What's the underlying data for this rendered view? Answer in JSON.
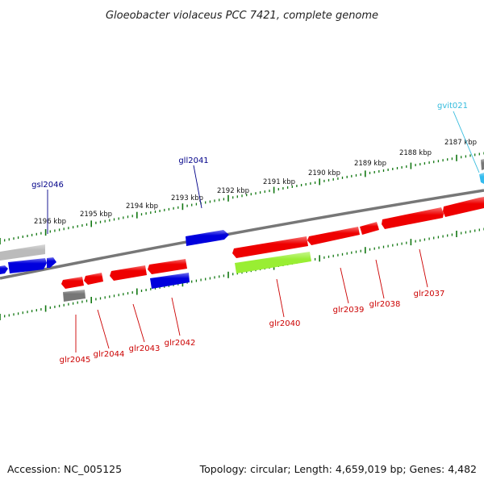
{
  "title": "Gloeobacter violaceus PCC 7421, complete genome",
  "footer": {
    "accession": "Accession: NC_005125",
    "summary": "Topology: circular; Length: 4,659,019 bp; Genes: 4,482"
  },
  "colors": {
    "forward_gene": "#0000dd",
    "reverse_gene": "#ee0000",
    "pseudo_gene": "#777777",
    "rna_gene": "#99ee33",
    "trna_gene": "#33bbee",
    "backbone": "#777777",
    "tick": "#117711",
    "label_forward": "#000088",
    "label_reverse": "#cc0000",
    "label_rna": "#33bbdd"
  },
  "scale": {
    "unit": "kbp",
    "labels": [
      "2187 kbp",
      "2188 kbp",
      "2189 kbp",
      "2190 kbp",
      "2191 kbp",
      "2192 kbp",
      "2193 kbp",
      "2194 kbp",
      "2195 kbp",
      "2196 kbp"
    ]
  },
  "genes": [
    {
      "name": "gvit021",
      "type": "tRNA",
      "strand": "+"
    },
    {
      "name": "gll2041",
      "type": "gene",
      "strand": "+"
    },
    {
      "name": "gsl2046",
      "type": "gene",
      "strand": "+"
    },
    {
      "name": "glr2037",
      "type": "gene",
      "strand": "-"
    },
    {
      "name": "glr2038",
      "type": "gene",
      "strand": "-"
    },
    {
      "name": "glr2039",
      "type": "gene",
      "strand": "-"
    },
    {
      "name": "glr2040",
      "type": "gene",
      "strand": "-"
    },
    {
      "name": "glr2042",
      "type": "gene",
      "strand": "-"
    },
    {
      "name": "glr2043",
      "type": "gene",
      "strand": "-"
    },
    {
      "name": "glr2044",
      "type": "gene",
      "strand": "-"
    },
    {
      "name": "glr2045",
      "type": "gene",
      "strand": "-"
    }
  ]
}
